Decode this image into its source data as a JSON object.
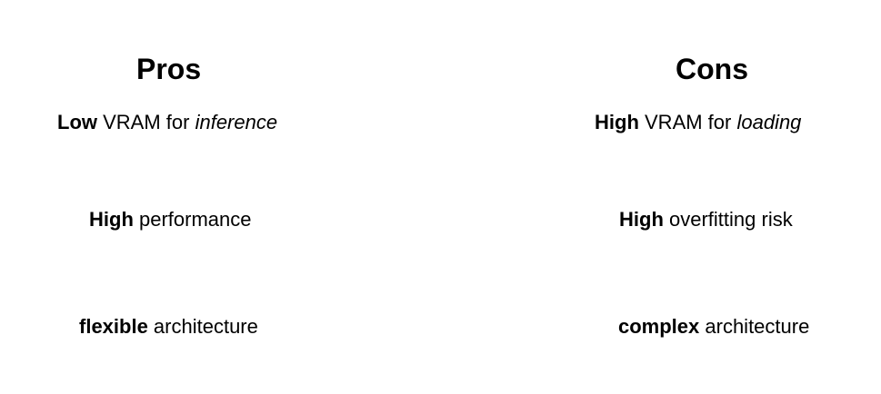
{
  "pros": {
    "title": "Pros",
    "items": [
      {
        "bold": "Low",
        "text": " VRAM for ",
        "italic": "inference"
      },
      {
        "bold": "High",
        "text": " performance",
        "italic": ""
      },
      {
        "bold": "flexible",
        "text": " architecture",
        "italic": ""
      }
    ]
  },
  "cons": {
    "title": "Cons",
    "items": [
      {
        "bold": "High",
        "text": " VRAM for ",
        "italic": "loading"
      },
      {
        "bold": "High",
        "text": " overfitting risk",
        "italic": ""
      },
      {
        "bold": "complex",
        "text": " architecture",
        "italic": ""
      }
    ]
  }
}
